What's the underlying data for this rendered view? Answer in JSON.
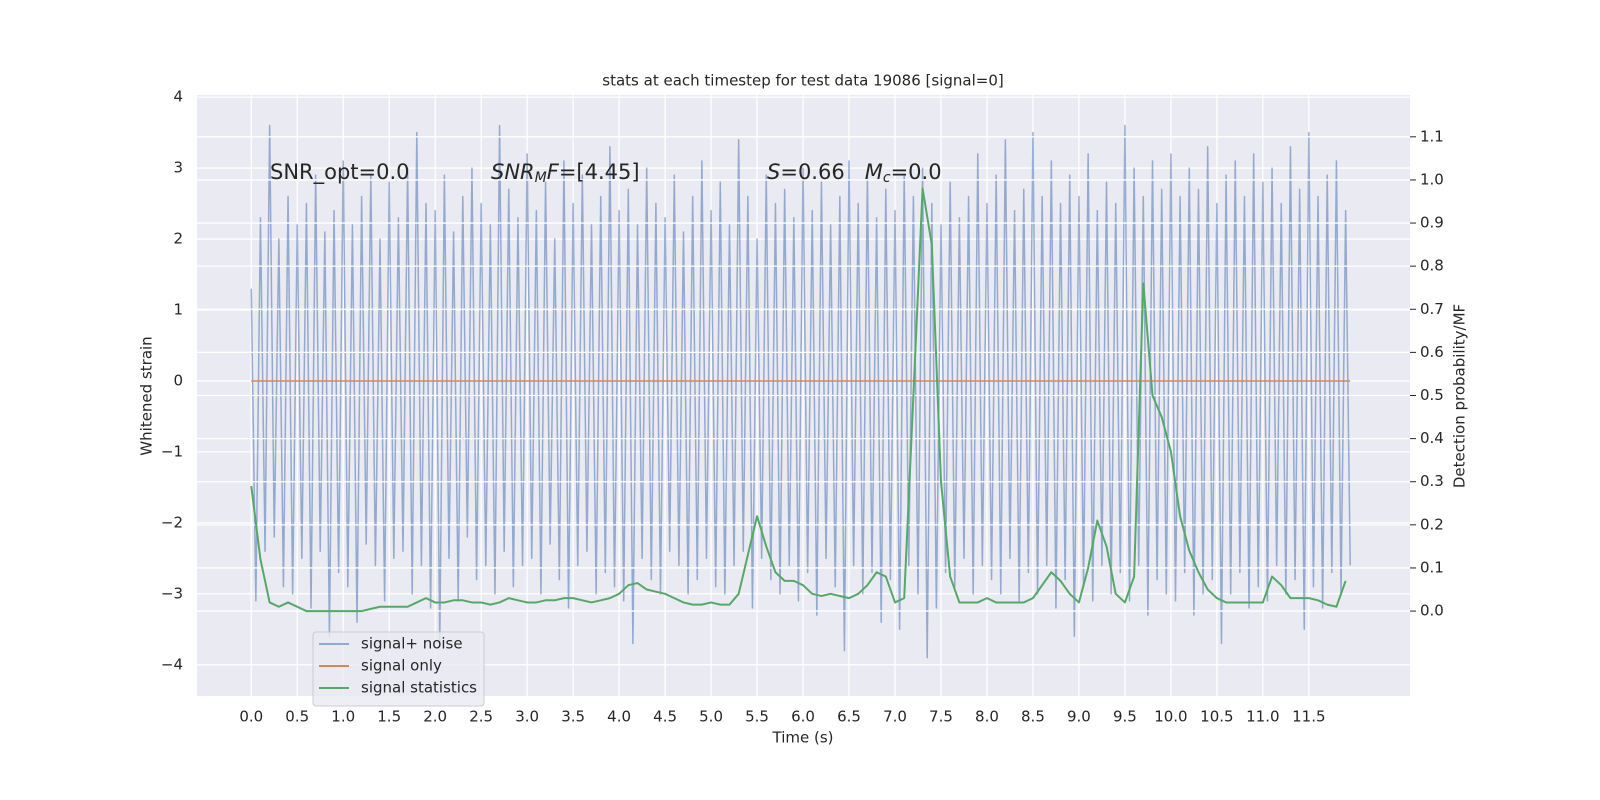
{
  "chart_data": {
    "type": "line",
    "title": "stats at each timestep for test data 19086 [signal=0]",
    "xlabel": "Time (s)",
    "ylabel": "Whitened strain",
    "y2label": "Detection probability/MF",
    "annotations": [
      [
        {
          "text": "SNR_opt=0.0"
        }
      ],
      [
        {
          "text": "SNR",
          "italic": true
        },
        {
          "text": "M",
          "italic": true,
          "sub": true
        },
        {
          "text": "F",
          "italic": true
        },
        {
          "text": "=[4.45]"
        }
      ],
      [
        {
          "text": "S",
          "italic": true
        },
        {
          "text": "=0.66   "
        },
        {
          "text": "M",
          "italic": true
        },
        {
          "text": "c",
          "italic": true,
          "sub": true
        },
        {
          "text": "=0.0"
        }
      ]
    ],
    "xlim": [
      -0.59,
      12.6
    ],
    "ylim": [
      -4.44,
      4.03
    ],
    "y2lim": [
      -0.197,
      1.197
    ],
    "xticks": [
      {
        "value": 0,
        "label": "0.0"
      },
      {
        "value": 0.5,
        "label": "0.5"
      },
      {
        "value": 1,
        "label": "1.0"
      },
      {
        "value": 1.5,
        "label": "1.5"
      },
      {
        "value": 2,
        "label": "2.0"
      },
      {
        "value": 2.5,
        "label": "2.5"
      },
      {
        "value": 3,
        "label": "3.0"
      },
      {
        "value": 3.5,
        "label": "3.5"
      },
      {
        "value": 4,
        "label": "4.0"
      },
      {
        "value": 4.5,
        "label": "4.5"
      },
      {
        "value": 5,
        "label": "5.0"
      },
      {
        "value": 5.5,
        "label": "5.5"
      },
      {
        "value": 6,
        "label": "6.0"
      },
      {
        "value": 6.5,
        "label": "6.5"
      },
      {
        "value": 7,
        "label": "7.0"
      },
      {
        "value": 7.5,
        "label": "7.5"
      },
      {
        "value": 8,
        "label": "8.0"
      },
      {
        "value": 8.5,
        "label": "8.5"
      },
      {
        "value": 9,
        "label": "9.0"
      },
      {
        "value": 9.5,
        "label": "9.5"
      },
      {
        "value": 10,
        "label": "10.0"
      },
      {
        "value": 10.5,
        "label": "10.5"
      },
      {
        "value": 11,
        "label": "11.0"
      },
      {
        "value": 11.5,
        "label": "11.5"
      }
    ],
    "yticks": [
      {
        "value": -4,
        "label": "−4"
      },
      {
        "value": -3,
        "label": "−3"
      },
      {
        "value": -2,
        "label": "−2"
      },
      {
        "value": -1,
        "label": "−1"
      },
      0,
      1,
      2,
      3,
      4
    ],
    "y2ticks": [
      {
        "value": 0,
        "label": "0.0"
      },
      {
        "value": 0.1,
        "label": "0.1"
      },
      {
        "value": 0.2,
        "label": "0.2"
      },
      {
        "value": 0.3,
        "label": "0.3"
      },
      {
        "value": 0.4,
        "label": "0.4"
      },
      {
        "value": 0.5,
        "label": "0.5"
      },
      {
        "value": 0.6,
        "label": "0.6"
      },
      {
        "value": 0.7,
        "label": "0.7"
      },
      {
        "value": 0.8,
        "label": "0.8"
      },
      {
        "value": 0.9,
        "label": "0.9"
      },
      {
        "value": 1,
        "label": "1.0"
      },
      {
        "value": 1.1,
        "label": "1.1"
      }
    ],
    "grid": true,
    "legend": "lower left",
    "series": [
      {
        "name": "signal+ noise",
        "color": "#4c72b0",
        "alpha": 0.55,
        "x": [
          0,
          0.05,
          0.1,
          0.15,
          0.2,
          0.25,
          0.3,
          0.35,
          0.4,
          0.45,
          0.5,
          0.55,
          0.6,
          0.65,
          0.7,
          0.75,
          0.8,
          0.85,
          0.9,
          0.95,
          1,
          1.05,
          1.1,
          1.15,
          1.2,
          1.25,
          1.3,
          1.35,
          1.4,
          1.45,
          1.5,
          1.55,
          1.6,
          1.65,
          1.7,
          1.75,
          1.8,
          1.85,
          1.9,
          1.95,
          2,
          2.05,
          2.1,
          2.15,
          2.2,
          2.25,
          2.3,
          2.35,
          2.4,
          2.45,
          2.5,
          2.55,
          2.6,
          2.65,
          2.7,
          2.75,
          2.8,
          2.85,
          2.9,
          2.95,
          3,
          3.05,
          3.1,
          3.15,
          3.2,
          3.25,
          3.3,
          3.35,
          3.4,
          3.45,
          3.5,
          3.55,
          3.6,
          3.65,
          3.7,
          3.75,
          3.8,
          3.85,
          3.9,
          3.95,
          4,
          4.05,
          4.1,
          4.15,
          4.2,
          4.25,
          4.3,
          4.35,
          4.4,
          4.45,
          4.5,
          4.55,
          4.6,
          4.65,
          4.7,
          4.75,
          4.8,
          4.85,
          4.9,
          4.95,
          5,
          5.05,
          5.1,
          5.15,
          5.2,
          5.25,
          5.3,
          5.35,
          5.4,
          5.45,
          5.5,
          5.55,
          5.6,
          5.65,
          5.7,
          5.75,
          5.8,
          5.85,
          5.9,
          5.95,
          6,
          6.05,
          6.1,
          6.15,
          6.2,
          6.25,
          6.3,
          6.35,
          6.4,
          6.45,
          6.5,
          6.55,
          6.6,
          6.65,
          6.7,
          6.75,
          6.8,
          6.85,
          6.9,
          6.95,
          7,
          7.05,
          7.1,
          7.15,
          7.2,
          7.25,
          7.3,
          7.35,
          7.4,
          7.45,
          7.5,
          7.55,
          7.6,
          7.65,
          7.7,
          7.75,
          7.8,
          7.85,
          7.9,
          7.95,
          8,
          8.05,
          8.1,
          8.15,
          8.2,
          8.25,
          8.3,
          8.35,
          8.4,
          8.45,
          8.5,
          8.55,
          8.6,
          8.65,
          8.7,
          8.75,
          8.8,
          8.85,
          8.9,
          8.95,
          9,
          9.05,
          9.1,
          9.15,
          9.2,
          9.25,
          9.3,
          9.35,
          9.4,
          9.45,
          9.5,
          9.55,
          9.6,
          9.65,
          9.7,
          9.75,
          9.8,
          9.85,
          9.9,
          9.95,
          10,
          10.05,
          10.1,
          10.15,
          10.2,
          10.25,
          10.3,
          10.35,
          10.4,
          10.45,
          10.5,
          10.55,
          10.6,
          10.65,
          10.7,
          10.75,
          10.8,
          10.85,
          10.9,
          10.95,
          11,
          11.05,
          11.1,
          11.15,
          11.2,
          11.25,
          11.3,
          11.35,
          11.4,
          11.45,
          11.5,
          11.55,
          11.6,
          11.65,
          11.7,
          11.75,
          11.8,
          11.85,
          11.9,
          11.95
        ],
        "values": [
          1.3,
          -3.1,
          2.3,
          -2.4,
          3.6,
          -2.2,
          2.0,
          -2.9,
          2.6,
          -3.0,
          2.2,
          -2.5,
          2.5,
          -3.2,
          2.9,
          -2.4,
          2.1,
          -3.6,
          2.4,
          -2.7,
          3.1,
          -2.9,
          2.2,
          -3.4,
          2.6,
          -2.3,
          2.9,
          -2.6,
          2.0,
          -3.1,
          2.8,
          -2.5,
          2.3,
          -2.4,
          3.0,
          -3.0,
          3.5,
          -2.6,
          2.5,
          -3.2,
          2.4,
          -3.7,
          2.9,
          -2.5,
          2.1,
          -3.1,
          2.6,
          -2.2,
          3.0,
          -2.8,
          2.5,
          -2.6,
          2.2,
          -3.0,
          3.6,
          -2.4,
          2.7,
          -2.9,
          2.3,
          -2.6,
          3.2,
          -2.5,
          2.4,
          -3.0,
          2.8,
          -2.3,
          2.0,
          -2.8,
          3.1,
          -3.2,
          2.5,
          -2.6,
          2.9,
          -2.4,
          2.2,
          -3.0,
          2.6,
          -2.7,
          3.3,
          -2.9,
          2.4,
          -3.1,
          2.7,
          -3.7,
          2.2,
          -2.5,
          3.0,
          -2.8,
          2.5,
          -3.0,
          2.3,
          -2.4,
          2.9,
          -2.6,
          2.1,
          -3.0,
          2.6,
          -2.8,
          3.1,
          -2.5,
          2.4,
          -2.9,
          2.8,
          -3.0,
          2.2,
          -2.6,
          3.4,
          -2.4,
          2.6,
          -3.2,
          2.0,
          -2.5,
          2.9,
          -2.8,
          2.5,
          -3.0,
          2.7,
          -2.6,
          2.3,
          -3.1,
          3.0,
          -2.7,
          2.4,
          -3.3,
          2.8,
          -2.5,
          2.2,
          -2.9,
          2.6,
          -3.8,
          3.1,
          -2.6,
          2.5,
          -3.0,
          2.9,
          -2.7,
          2.3,
          -3.4,
          2.7,
          -2.8,
          2.4,
          -3.5,
          2.9,
          -2.6,
          2.6,
          -3.0,
          3.0,
          -3.9,
          2.5,
          -3.2,
          2.2,
          -2.7,
          2.8,
          -2.9,
          2.3,
          -2.5,
          2.6,
          -3.0,
          3.2,
          -2.6,
          2.5,
          -2.8,
          2.9,
          -3.0,
          3.4,
          -2.5,
          2.4,
          -3.1,
          2.7,
          -2.7,
          3.5,
          -3.0,
          2.6,
          -2.6,
          3.1,
          -3.2,
          2.5,
          -2.8,
          2.9,
          -3.6,
          2.6,
          -2.9,
          3.2,
          -3.1,
          2.4,
          -2.6,
          2.8,
          -3.0,
          2.5,
          -2.7,
          3.6,
          -3.1,
          3.0,
          -2.6,
          2.6,
          -3.3,
          3.1,
          -2.8,
          2.7,
          -3.0,
          3.2,
          -3.1,
          2.6,
          -2.7,
          3.0,
          -3.3,
          2.7,
          -3.0,
          3.3,
          -2.8,
          2.5,
          -3.7,
          2.9,
          -3.0,
          3.1,
          -2.7,
          2.6,
          -3.2,
          3.2,
          -2.9,
          2.8,
          -3.1,
          3.0,
          -2.6,
          2.5,
          -3.0,
          3.3,
          -2.8,
          2.7,
          -3.5,
          3.5,
          -2.9,
          2.6,
          -3.2,
          2.9,
          -2.7,
          3.1,
          -3.0,
          2.4,
          -2.6
        ]
      },
      {
        "name": "signal only",
        "color": "#dd8452",
        "alpha": 1,
        "x": [
          0,
          11.95
        ],
        "values": [
          0,
          0
        ]
      },
      {
        "name": "signal statistics",
        "color": "#55a868",
        "alpha": 1,
        "axis": "y2",
        "x": [
          0,
          0.1,
          0.2,
          0.3,
          0.4,
          0.5,
          0.6,
          0.7,
          0.8,
          0.9,
          1,
          1.1,
          1.2,
          1.3,
          1.4,
          1.5,
          1.6,
          1.7,
          1.8,
          1.9,
          2,
          2.1,
          2.2,
          2.3,
          2.4,
          2.5,
          2.6,
          2.7,
          2.8,
          2.9,
          3,
          3.1,
          3.2,
          3.3,
          3.4,
          3.5,
          3.6,
          3.7,
          3.8,
          3.9,
          4,
          4.1,
          4.2,
          4.3,
          4.4,
          4.5,
          4.6,
          4.7,
          4.8,
          4.9,
          5,
          5.1,
          5.2,
          5.3,
          5.4,
          5.5,
          5.6,
          5.7,
          5.8,
          5.9,
          6,
          6.1,
          6.2,
          6.3,
          6.4,
          6.5,
          6.6,
          6.7,
          6.8,
          6.9,
          7,
          7.1,
          7.2,
          7.3,
          7.4,
          7.5,
          7.6,
          7.7,
          7.8,
          7.9,
          8,
          8.1,
          8.2,
          8.3,
          8.4,
          8.5,
          8.6,
          8.7,
          8.8,
          8.9,
          9,
          9.1,
          9.2,
          9.3,
          9.4,
          9.5,
          9.6,
          9.7,
          9.8,
          9.9,
          10,
          10.1,
          10.2,
          10.3,
          10.4,
          10.5,
          10.6,
          10.7,
          10.8,
          10.9,
          11,
          11.1,
          11.2,
          11.3,
          11.4,
          11.5,
          11.6,
          11.7,
          11.8,
          11.9
        ],
        "values": [
          0.29,
          0.12,
          0.02,
          0.01,
          0.02,
          0.01,
          0,
          0,
          0,
          0,
          0,
          0,
          0,
          0.005,
          0.01,
          0.01,
          0.01,
          0.01,
          0.02,
          0.03,
          0.02,
          0.02,
          0.025,
          0.025,
          0.02,
          0.02,
          0.015,
          0.02,
          0.03,
          0.025,
          0.02,
          0.02,
          0.025,
          0.025,
          0.03,
          0.03,
          0.025,
          0.02,
          0.025,
          0.03,
          0.04,
          0.06,
          0.065,
          0.05,
          0.045,
          0.04,
          0.03,
          0.02,
          0.015,
          0.015,
          0.02,
          0.015,
          0.015,
          0.04,
          0.13,
          0.22,
          0.15,
          0.09,
          0.07,
          0.07,
          0.06,
          0.04,
          0.035,
          0.04,
          0.035,
          0.03,
          0.04,
          0.06,
          0.09,
          0.08,
          0.02,
          0.03,
          0.5,
          0.98,
          0.85,
          0.3,
          0.08,
          0.02,
          0.02,
          0.02,
          0.03,
          0.02,
          0.02,
          0.02,
          0.02,
          0.03,
          0.06,
          0.09,
          0.07,
          0.04,
          0.02,
          0.1,
          0.21,
          0.15,
          0.04,
          0.02,
          0.08,
          0.76,
          0.5,
          0.45,
          0.37,
          0.22,
          0.14,
          0.09,
          0.05,
          0.03,
          0.02,
          0.02,
          0.02,
          0.02,
          0.02,
          0.08,
          0.06,
          0.03,
          0.03,
          0.03,
          0.025,
          0.015,
          0.01,
          0.07
        ]
      }
    ]
  }
}
